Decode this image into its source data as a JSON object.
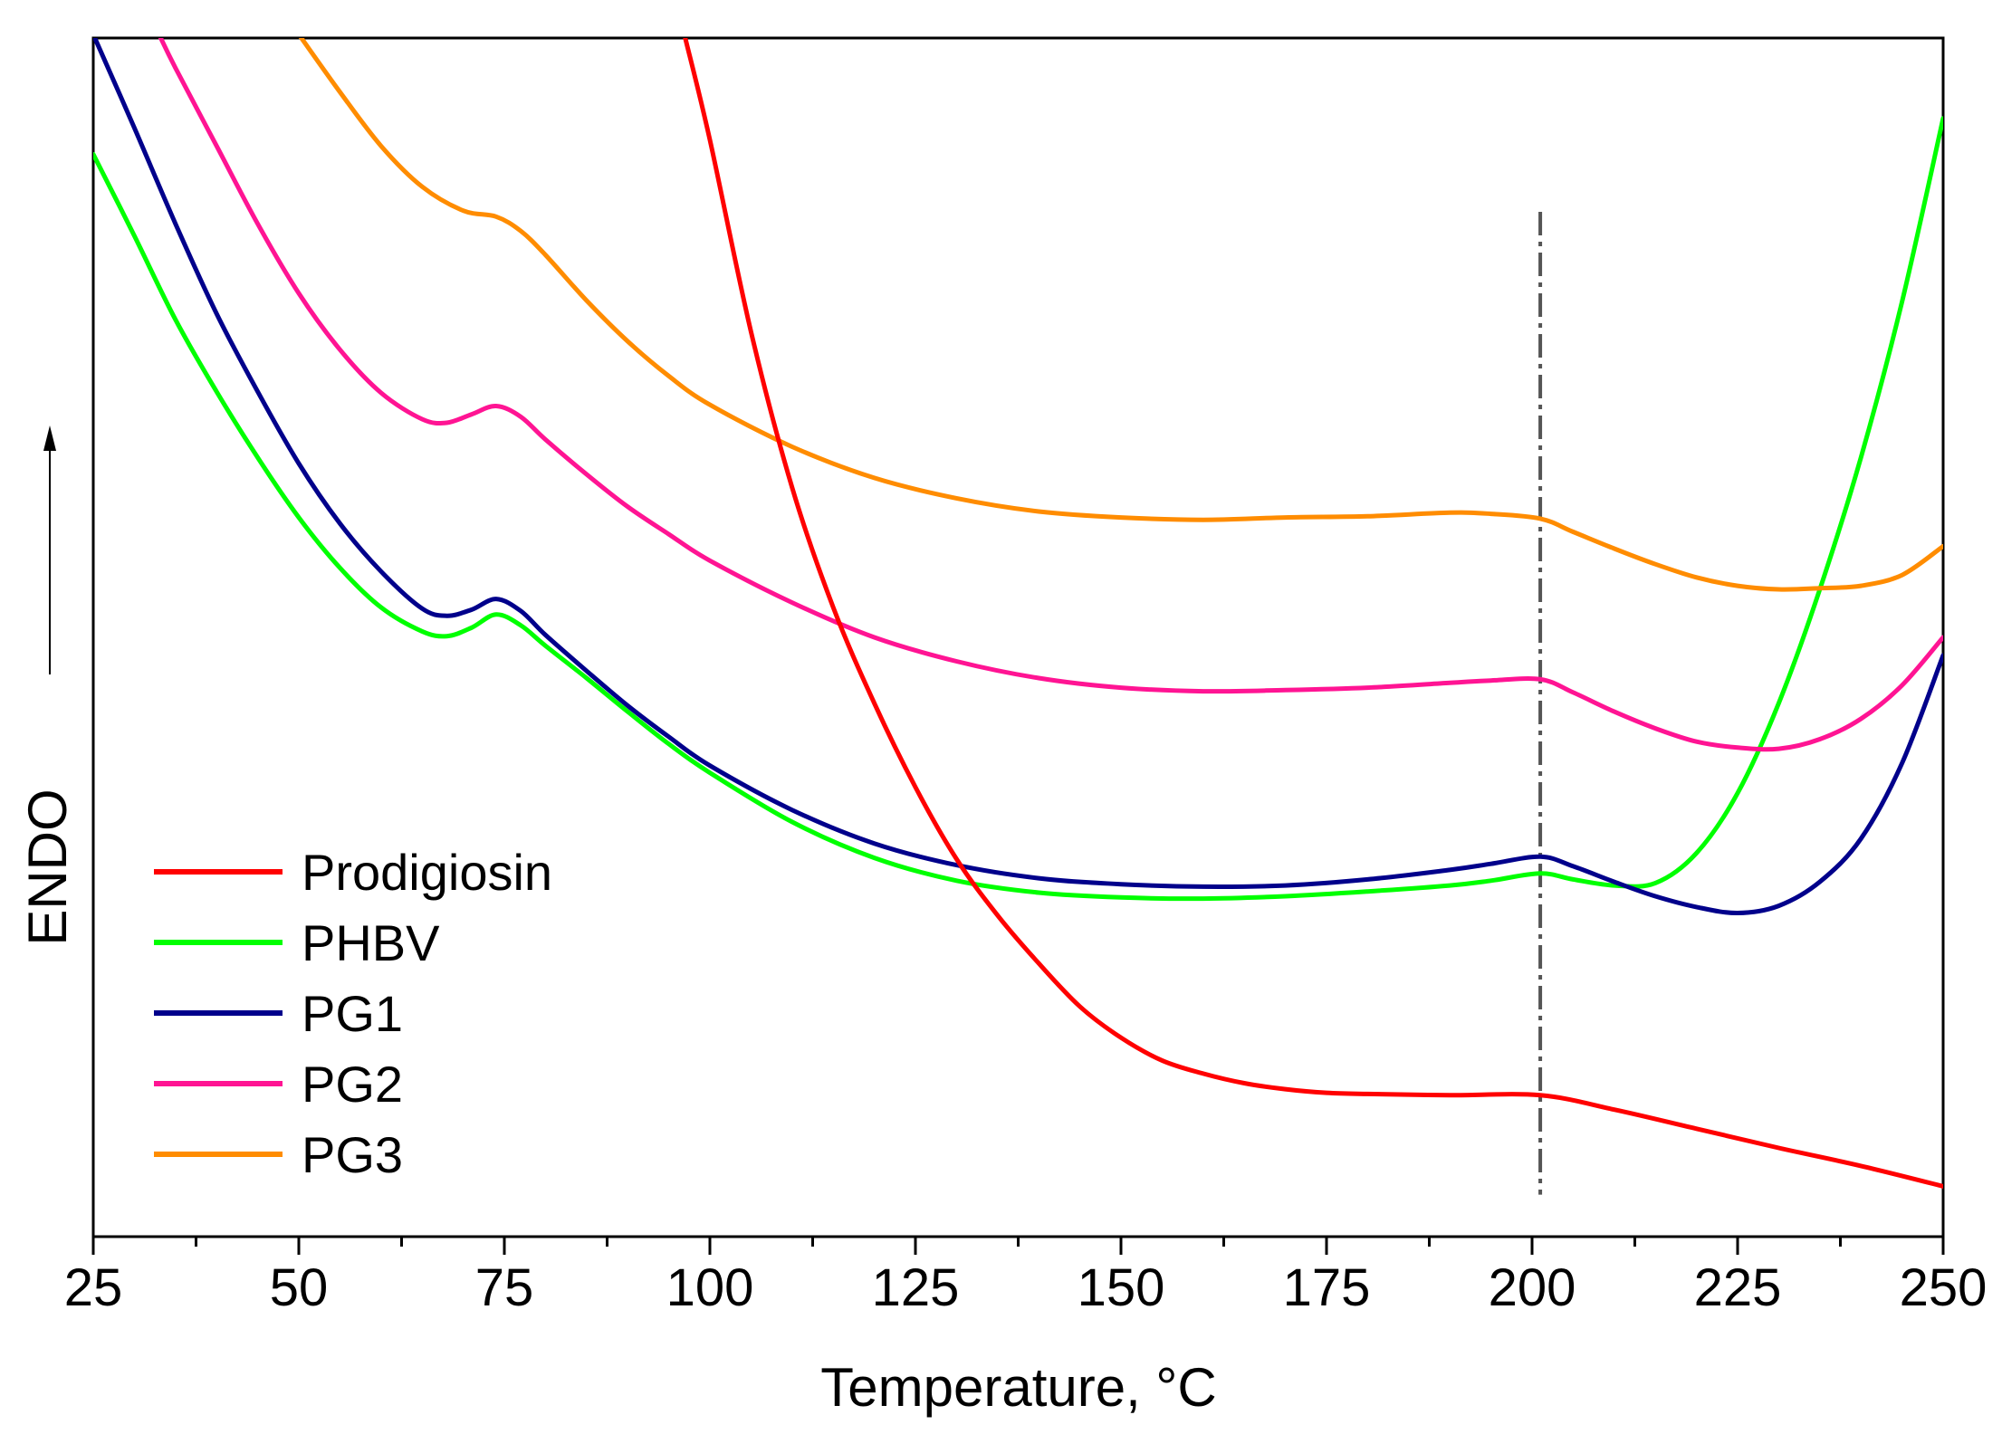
{
  "chart_data": {
    "type": "line",
    "title": "",
    "xlabel": "Temperature, °C",
    "ylabel": "ENDO",
    "xlim": [
      25,
      250
    ],
    "ylim": [
      0,
      100
    ],
    "y_axis_note": "arbitrary units, no numeric ticks; arrow points up",
    "x_ticks": [
      25,
      50,
      75,
      100,
      125,
      150,
      175,
      200,
      225,
      250
    ],
    "x_tick_labels": [
      "25",
      "50",
      "75",
      "100",
      "125",
      "150",
      "175",
      "200",
      "225",
      "250"
    ],
    "x_minor_step": 12.5,
    "grid": false,
    "legend_position": "bottom-left",
    "vline": {
      "x": 201,
      "y_range": [
        3.5,
        85.5
      ],
      "style": "dash-dot"
    },
    "series": [
      {
        "name": "Prodigiosin",
        "color": "#ff0000",
        "points": [
          [
            97,
            100
          ],
          [
            100,
            91.5
          ],
          [
            105,
            75.5
          ],
          [
            110,
            62.5
          ],
          [
            115,
            52.5
          ],
          [
            120,
            44.5
          ],
          [
            125,
            37.5
          ],
          [
            130,
            31.5
          ],
          [
            135,
            26.8
          ],
          [
            140,
            22.8
          ],
          [
            145,
            19.2
          ],
          [
            150,
            16.6
          ],
          [
            155,
            14.7
          ],
          [
            160,
            13.6
          ],
          [
            165,
            12.8
          ],
          [
            170,
            12.3
          ],
          [
            175,
            12.0
          ],
          [
            180,
            11.9
          ],
          [
            190,
            11.8
          ],
          [
            201,
            11.8
          ],
          [
            210,
            10.6
          ],
          [
            220,
            9.0
          ],
          [
            230,
            7.4
          ],
          [
            240,
            5.9
          ],
          [
            250,
            4.2
          ]
        ]
      },
      {
        "name": "PHBV",
        "color": "#00ff00",
        "points": [
          [
            25,
            90.3
          ],
          [
            30,
            83.5
          ],
          [
            35,
            76.5
          ],
          [
            40,
            70.5
          ],
          [
            45,
            65.0
          ],
          [
            50,
            60.0
          ],
          [
            55,
            55.8
          ],
          [
            60,
            52.5
          ],
          [
            65,
            50.5
          ],
          [
            68,
            50.1
          ],
          [
            71,
            50.8
          ],
          [
            74,
            51.9
          ],
          [
            77,
            51.0
          ],
          [
            80,
            49.3
          ],
          [
            85,
            46.6
          ],
          [
            90,
            43.8
          ],
          [
            95,
            41.1
          ],
          [
            100,
            38.7
          ],
          [
            110,
            34.6
          ],
          [
            120,
            31.6
          ],
          [
            130,
            29.7
          ],
          [
            140,
            28.7
          ],
          [
            150,
            28.3
          ],
          [
            160,
            28.2
          ],
          [
            170,
            28.4
          ],
          [
            180,
            28.8
          ],
          [
            190,
            29.3
          ],
          [
            195,
            29.7
          ],
          [
            201,
            30.3
          ],
          [
            205,
            29.8
          ],
          [
            210,
            29.3
          ],
          [
            215,
            29.5
          ],
          [
            220,
            32.0
          ],
          [
            225,
            37.0
          ],
          [
            230,
            44.5
          ],
          [
            235,
            54.0
          ],
          [
            240,
            65.0
          ],
          [
            245,
            78.0
          ],
          [
            250,
            93.3
          ]
        ]
      },
      {
        "name": "PG1",
        "color": "#00008b",
        "points": [
          [
            25,
            100.3
          ],
          [
            30,
            92.5
          ],
          [
            35,
            84.5
          ],
          [
            40,
            77.0
          ],
          [
            45,
            70.5
          ],
          [
            50,
            64.5
          ],
          [
            55,
            59.5
          ],
          [
            60,
            55.5
          ],
          [
            65,
            52.4
          ],
          [
            68,
            51.8
          ],
          [
            71,
            52.3
          ],
          [
            74,
            53.2
          ],
          [
            77,
            52.2
          ],
          [
            80,
            50.2
          ],
          [
            85,
            47.2
          ],
          [
            90,
            44.3
          ],
          [
            95,
            41.7
          ],
          [
            100,
            39.3
          ],
          [
            110,
            35.6
          ],
          [
            120,
            32.8
          ],
          [
            130,
            31.0
          ],
          [
            140,
            29.9
          ],
          [
            150,
            29.4
          ],
          [
            160,
            29.2
          ],
          [
            170,
            29.3
          ],
          [
            180,
            29.8
          ],
          [
            190,
            30.6
          ],
          [
            195,
            31.1
          ],
          [
            201,
            31.7
          ],
          [
            205,
            30.9
          ],
          [
            210,
            29.6
          ],
          [
            215,
            28.4
          ],
          [
            220,
            27.5
          ],
          [
            225,
            27.0
          ],
          [
            230,
            27.6
          ],
          [
            235,
            29.6
          ],
          [
            240,
            33.2
          ],
          [
            245,
            39.5
          ],
          [
            250,
            48.5
          ]
        ]
      },
      {
        "name": "PG2",
        "color": "#ff1493",
        "points": [
          [
            33,
            100.3
          ],
          [
            35,
            97.5
          ],
          [
            40,
            91.0
          ],
          [
            45,
            84.5
          ],
          [
            50,
            78.7
          ],
          [
            55,
            74.0
          ],
          [
            60,
            70.4
          ],
          [
            65,
            68.2
          ],
          [
            68,
            67.9
          ],
          [
            71,
            68.6
          ],
          [
            74,
            69.3
          ],
          [
            77,
            68.4
          ],
          [
            80,
            66.5
          ],
          [
            85,
            63.6
          ],
          [
            90,
            60.9
          ],
          [
            95,
            58.6
          ],
          [
            100,
            56.4
          ],
          [
            110,
            52.9
          ],
          [
            120,
            50.0
          ],
          [
            130,
            48.0
          ],
          [
            140,
            46.6
          ],
          [
            150,
            45.8
          ],
          [
            160,
            45.5
          ],
          [
            170,
            45.6
          ],
          [
            180,
            45.8
          ],
          [
            190,
            46.2
          ],
          [
            195,
            46.4
          ],
          [
            201,
            46.5
          ],
          [
            205,
            45.4
          ],
          [
            210,
            43.8
          ],
          [
            215,
            42.4
          ],
          [
            220,
            41.3
          ],
          [
            225,
            40.8
          ],
          [
            230,
            40.7
          ],
          [
            235,
            41.5
          ],
          [
            240,
            43.2
          ],
          [
            245,
            46.0
          ],
          [
            250,
            50.0
          ]
        ]
      },
      {
        "name": "PG3",
        "color": "#ff8c00",
        "points": [
          [
            50,
            100.3
          ],
          [
            55,
            95.5
          ],
          [
            60,
            91.0
          ],
          [
            65,
            87.6
          ],
          [
            70,
            85.6
          ],
          [
            74,
            85.1
          ],
          [
            77,
            83.9
          ],
          [
            80,
            81.9
          ],
          [
            85,
            78.1
          ],
          [
            90,
            74.7
          ],
          [
            95,
            71.8
          ],
          [
            100,
            69.4
          ],
          [
            110,
            65.9
          ],
          [
            120,
            63.3
          ],
          [
            130,
            61.6
          ],
          [
            140,
            60.5
          ],
          [
            150,
            60.0
          ],
          [
            160,
            59.8
          ],
          [
            170,
            60.0
          ],
          [
            180,
            60.1
          ],
          [
            190,
            60.4
          ],
          [
            195,
            60.3
          ],
          [
            201,
            59.9
          ],
          [
            205,
            58.8
          ],
          [
            210,
            57.4
          ],
          [
            215,
            56.1
          ],
          [
            220,
            55.0
          ],
          [
            225,
            54.3
          ],
          [
            230,
            54.0
          ],
          [
            235,
            54.1
          ],
          [
            240,
            54.3
          ],
          [
            245,
            55.2
          ],
          [
            250,
            57.6
          ]
        ]
      }
    ]
  }
}
